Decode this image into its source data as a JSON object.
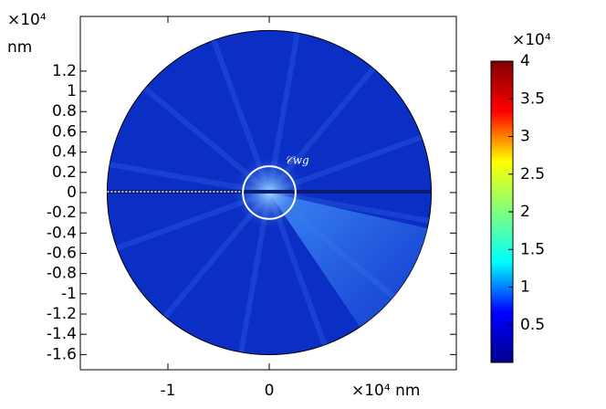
{
  "chart_data": {
    "type": "field",
    "x_unit_label": "×10⁴ nm",
    "y_exponent_label": "×10⁴",
    "y_unit_label": "nm",
    "colorbar_exponent_label": "×10⁴",
    "annotation": "𝒞wg",
    "xlim": [
      -1.865,
      1.847
    ],
    "ylim": [
      -1.75,
      1.74
    ],
    "xticks": [
      -1,
      0
    ],
    "yticks": [
      1.2,
      1,
      0.8,
      0.6,
      0.4,
      0.2,
      0,
      -0.2,
      -0.4,
      -0.6,
      -0.8,
      -1,
      -1.2,
      -1.4,
      -1.6
    ],
    "domain_radius": 1.6,
    "contour_radius": 0.26,
    "clim": [
      0,
      4
    ],
    "cticks": [
      4,
      3.5,
      3,
      2.5,
      2,
      1.5,
      1,
      0.5
    ],
    "colormap": [
      "#00008f",
      "#0000ff",
      "#00ffff",
      "#7fff7f",
      "#ffff00",
      "#ff0000",
      "#800000"
    ],
    "field_color": "#0b2ec4"
  }
}
